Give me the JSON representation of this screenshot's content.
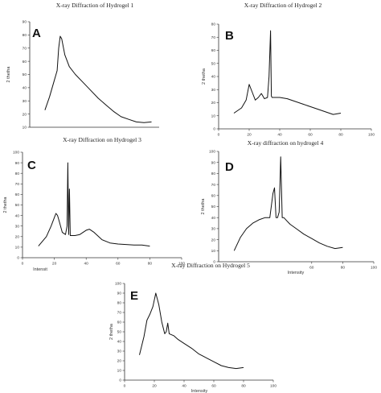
{
  "chart_data": [
    {
      "type": "line",
      "panel": "A",
      "title": "X-ray Diffraction of Hydrogel 1",
      "xlabel": "",
      "ylabel": "2 thetha",
      "xlim": [
        0,
        85
      ],
      "ylim": [
        10,
        90
      ],
      "yticks": [
        10,
        20,
        30,
        40,
        50,
        60,
        70,
        80,
        90
      ],
      "xticks": [],
      "x": [
        10,
        13,
        16,
        18,
        19,
        20,
        21,
        23,
        26,
        30,
        35,
        40,
        45,
        50,
        55,
        60,
        65,
        70,
        75,
        80
      ],
      "values": [
        23,
        33,
        45,
        53,
        70,
        79,
        77,
        65,
        56,
        50,
        44,
        38,
        32,
        27,
        22,
        18,
        16,
        14,
        13.5,
        14
      ]
    },
    {
      "type": "line",
      "panel": "B",
      "title": "X-ray Diffraction of Hydrogel 2",
      "xlabel": "",
      "ylabel": "2 thetha",
      "xlim": [
        0,
        100
      ],
      "ylim": [
        0,
        80
      ],
      "yticks": [
        0,
        10,
        20,
        30,
        40,
        50,
        60,
        70,
        80
      ],
      "xticks": [
        0,
        20,
        40,
        60,
        80,
        100
      ],
      "x": [
        10,
        15,
        18,
        20,
        22,
        24,
        26,
        28,
        30,
        32,
        33,
        34,
        34.5,
        35,
        36,
        38,
        40,
        45,
        50,
        55,
        60,
        65,
        70,
        75,
        80
      ],
      "values": [
        12,
        16,
        22,
        34,
        28,
        22,
        24,
        27,
        23,
        24,
        40,
        75,
        25,
        24,
        24,
        24,
        24,
        23,
        21,
        19,
        17,
        15,
        13,
        11,
        12
      ]
    },
    {
      "type": "line",
      "panel": "C",
      "title": "X-ray Diffraction on Hydrogel 3",
      "xlabel": "Intensit",
      "ylabel": "2 thetha",
      "xlim": [
        0,
        100
      ],
      "ylim": [
        0,
        100
      ],
      "yticks": [
        0,
        10,
        20,
        30,
        40,
        50,
        60,
        70,
        80,
        90,
        100
      ],
      "xticks": [
        0,
        20,
        40,
        60,
        80,
        100
      ],
      "x": [
        10,
        15,
        18,
        20,
        21,
        22,
        23,
        25,
        27,
        28,
        28.5,
        29,
        29.5,
        30,
        33,
        36,
        40,
        42,
        45,
        50,
        55,
        60,
        65,
        70,
        75,
        80
      ],
      "values": [
        11,
        20,
        30,
        38,
        42,
        40,
        35,
        24,
        22,
        30,
        90,
        22,
        65,
        21,
        21,
        22,
        26,
        27,
        24,
        17,
        14,
        13,
        12.5,
        12,
        12,
        11
      ]
    },
    {
      "type": "line",
      "panel": "D",
      "title": "X-ray diffraction on hydrogel 4",
      "xlabel": "Intensity",
      "ylabel": "2 thetha",
      "xlim": [
        0,
        100
      ],
      "ylim": [
        0,
        100
      ],
      "yticks": [
        0,
        10,
        20,
        30,
        40,
        50,
        60,
        70,
        80,
        90,
        100
      ],
      "xticks": [
        60,
        80,
        100
      ],
      "x": [
        10,
        14,
        18,
        22,
        26,
        30,
        33,
        35,
        36,
        37,
        38,
        39,
        40,
        41,
        42,
        44,
        46,
        50,
        55,
        60,
        65,
        70,
        75,
        80
      ],
      "values": [
        10,
        22,
        30,
        35,
        38,
        40,
        40,
        62,
        67,
        40,
        40,
        45,
        95,
        40,
        40,
        37,
        34,
        30,
        25,
        21,
        17,
        14,
        12,
        13
      ]
    },
    {
      "type": "line",
      "panel": "E",
      "title": "X-ray Diffraction on Hydrogel 5",
      "xlabel": "Intensity",
      "ylabel": "2 thetha",
      "xlim": [
        0,
        100
      ],
      "ylim": [
        0,
        100
      ],
      "yticks": [
        0,
        10,
        20,
        30,
        40,
        50,
        60,
        70,
        80,
        90,
        100
      ],
      "xticks": [
        0,
        20,
        40,
        60,
        80,
        100
      ],
      "x": [
        10,
        13,
        15,
        17,
        19,
        21,
        23,
        25,
        27,
        28,
        29,
        30,
        33,
        36,
        40,
        45,
        50,
        55,
        60,
        65,
        70,
        75,
        80
      ],
      "values": [
        26,
        45,
        62,
        68,
        76,
        90,
        78,
        60,
        48,
        50,
        59,
        48,
        46,
        42,
        38,
        33,
        27,
        23,
        19,
        15,
        13,
        12,
        13
      ]
    }
  ]
}
